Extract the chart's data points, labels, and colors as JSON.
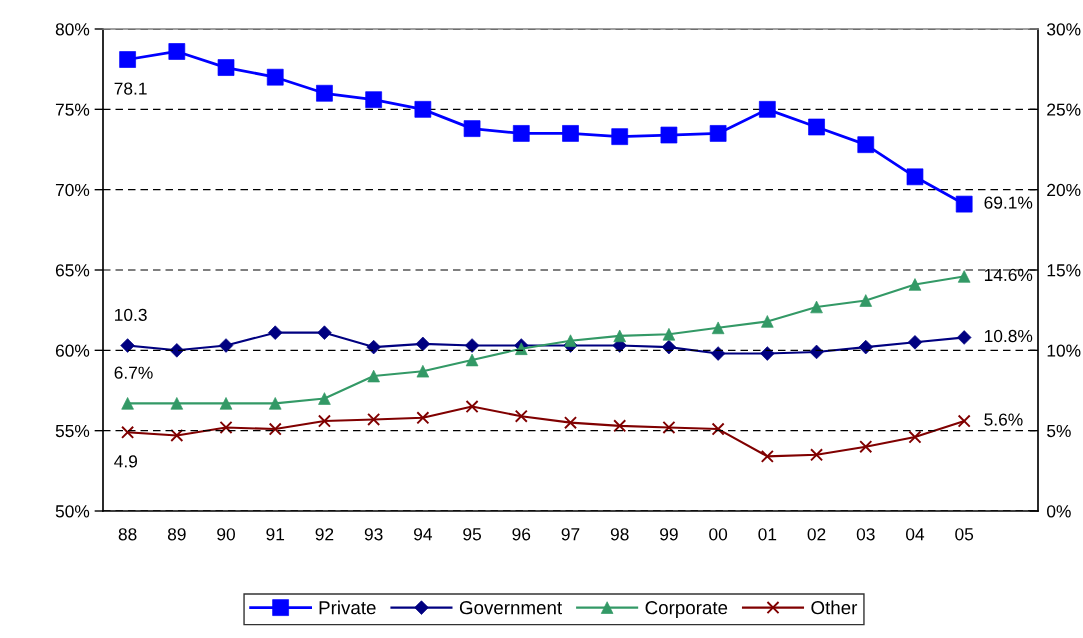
{
  "chart_data": {
    "type": "line",
    "categories": [
      "88",
      "89",
      "90",
      "91",
      "92",
      "93",
      "94",
      "95",
      "96",
      "97",
      "98",
      "99",
      "00",
      "01",
      "02",
      "03",
      "04",
      "05",
      null
    ],
    "series": [
      {
        "name": "Private",
        "color": "#0000ff",
        "marker": "square",
        "values": [
          78.1,
          78.6,
          77.6,
          77.0,
          76.0,
          75.6,
          75.0,
          73.8,
          73.5,
          73.5,
          73.3,
          73.4,
          73.5,
          75.0,
          73.9,
          72.8,
          70.8,
          69.1,
          null
        ],
        "value_labels": [
          "78.1",
          null,
          null,
          null,
          null,
          null,
          null,
          null,
          null,
          null,
          null,
          null,
          null,
          null,
          null,
          null,
          null,
          "69.1%",
          null
        ]
      },
      {
        "name": "Government",
        "color": "#000080",
        "marker": "diamond",
        "axis": "y2",
        "values": [
          10.3,
          10.0,
          10.3,
          11.1,
          11.1,
          10.2,
          10.4,
          10.3,
          10.3,
          10.3,
          10.3,
          10.2,
          9.8,
          9.8,
          9.9,
          10.2,
          10.5,
          10.8,
          null
        ],
        "value_labels": [
          "10.3",
          null,
          null,
          null,
          null,
          null,
          null,
          null,
          null,
          null,
          null,
          null,
          null,
          null,
          null,
          null,
          null,
          "10.8%",
          null
        ]
      },
      {
        "name": "Corporate",
        "color": "#339966",
        "marker": "triangle",
        "axis": "y2",
        "values": [
          6.7,
          6.7,
          6.7,
          6.7,
          7.0,
          8.4,
          8.7,
          9.4,
          10.1,
          10.6,
          10.9,
          11.0,
          11.4,
          11.8,
          12.7,
          13.1,
          14.1,
          14.6,
          null
        ],
        "value_labels": [
          "6.7%",
          null,
          null,
          null,
          null,
          null,
          null,
          null,
          null,
          null,
          null,
          null,
          null,
          null,
          null,
          null,
          null,
          "14.6%",
          null
        ]
      },
      {
        "name": "Other",
        "color": "#800000",
        "marker": "cross",
        "axis": "y2",
        "values": [
          4.9,
          4.7,
          5.2,
          5.1,
          5.6,
          5.7,
          5.8,
          6.5,
          5.9,
          5.5,
          5.3,
          5.2,
          5.1,
          3.4,
          3.5,
          4.0,
          4.6,
          5.6,
          null
        ],
        "value_labels": [
          "4.9",
          null,
          null,
          null,
          null,
          null,
          null,
          null,
          null,
          null,
          null,
          null,
          null,
          null,
          null,
          null,
          null,
          "5.6%",
          null
        ]
      }
    ],
    "ylim": [
      50,
      80
    ],
    "yticks": [
      {
        "value": 50,
        "label": "50%"
      },
      {
        "value": 55,
        "label": "55%"
      },
      {
        "value": 60,
        "label": "60%"
      },
      {
        "value": 65,
        "label": "65%"
      },
      {
        "value": 70,
        "label": "70%"
      },
      {
        "value": 75,
        "label": "75%"
      },
      {
        "value": 80,
        "label": "80%"
      }
    ],
    "y2lim": [
      0,
      30
    ],
    "y2ticks": [
      {
        "value": 0,
        "label": "0%"
      },
      {
        "value": 5,
        "label": "5%"
      },
      {
        "value": 10,
        "label": "10%"
      },
      {
        "value": 15,
        "label": "15%"
      },
      {
        "value": 20,
        "label": "20%"
      },
      {
        "value": 25,
        "label": "25%"
      },
      {
        "value": 30,
        "label": "30%"
      }
    ],
    "grid": "y",
    "legend": "bottom"
  }
}
